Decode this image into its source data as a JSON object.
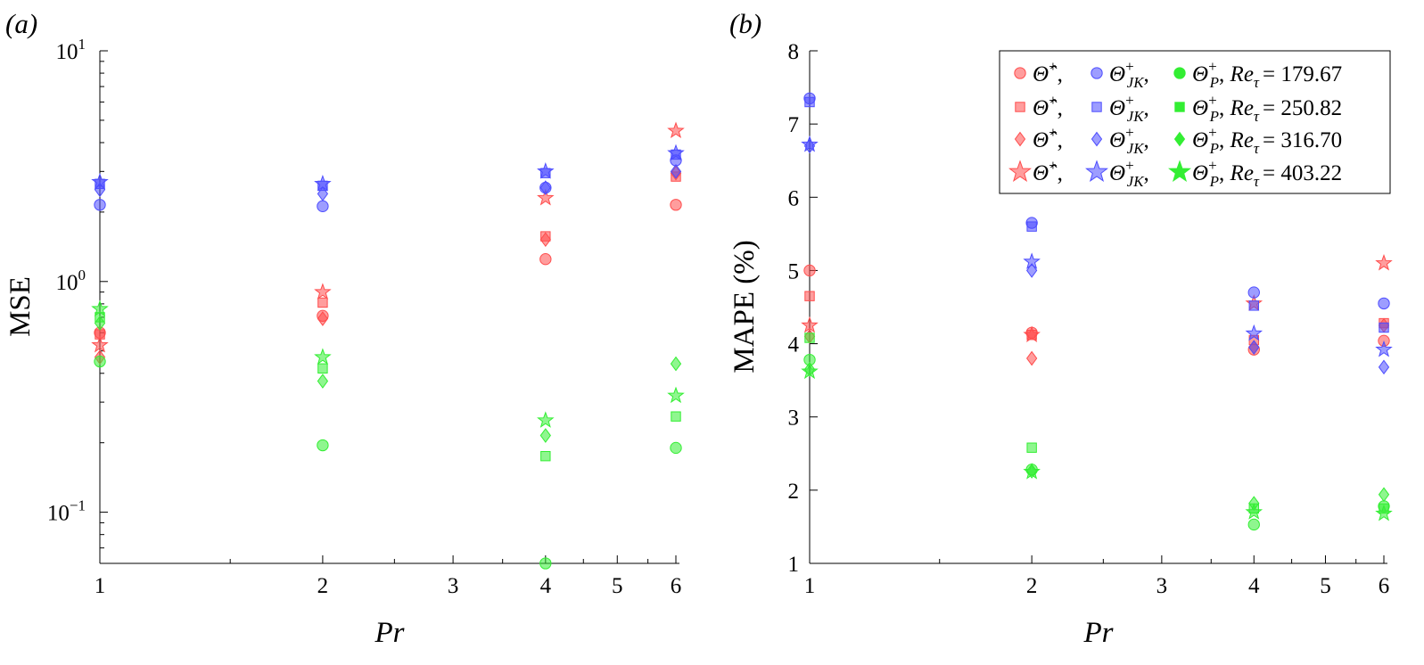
{
  "colors": {
    "red": "#ff4d4d",
    "blue": "#4d4dff",
    "green": "#33ee33"
  },
  "legend": {
    "placement": "top-right of panel (b)",
    "symbol_1": "Θ̂",
    "symbol_2": "Θ",
    "sub_2": "JK",
    "sub_3": "P",
    "sup": "+",
    "re_symbol": "Re",
    "re_sub": "τ",
    "rows": [
      {
        "marker": "circle",
        "value": "= 179.67"
      },
      {
        "marker": "square",
        "value": "= 250.82"
      },
      {
        "marker": "diamond",
        "value": "= 316.70"
      },
      {
        "marker": "star",
        "value": "= 403.22"
      }
    ]
  },
  "chart_data": [
    {
      "panel_label": "(a)",
      "type": "scatter",
      "xlabel": "Pr",
      "ylabel": "MSE",
      "xscale": "log",
      "yscale": "log",
      "xlim": [
        1,
        6
      ],
      "ylim": [
        0.06,
        10
      ],
      "x_ticks": [
        "1",
        "2",
        "3",
        "4",
        "5",
        "6"
      ],
      "y_ticks": [
        {
          "base": "10",
          "exp": "−1"
        },
        {
          "base": "10",
          "exp": "0"
        },
        {
          "base": "10",
          "exp": "1"
        }
      ],
      "x": [
        1,
        2,
        4,
        6
      ],
      "series": [
        {
          "group": "red",
          "marker": "circle",
          "values": [
            0.6,
            0.71,
            1.25,
            2.15
          ]
        },
        {
          "group": "red",
          "marker": "square",
          "values": [
            0.59,
            0.81,
            1.57,
            2.85
          ]
        },
        {
          "group": "red",
          "marker": "diamond",
          "values": [
            0.47,
            0.69,
            1.52,
            2.95
          ]
        },
        {
          "group": "red",
          "marker": "star",
          "values": [
            0.53,
            0.9,
            2.3,
            4.5
          ]
        },
        {
          "group": "blue",
          "marker": "circle",
          "values": [
            2.15,
            2.12,
            2.55,
            3.35
          ]
        },
        {
          "group": "blue",
          "marker": "square",
          "values": [
            2.65,
            2.6,
            2.95,
            3.55
          ]
        },
        {
          "group": "blue",
          "marker": "diamond",
          "values": [
            2.5,
            2.4,
            2.55,
            3.0
          ]
        },
        {
          "group": "blue",
          "marker": "star",
          "values": [
            2.7,
            2.65,
            3.0,
            3.6
          ]
        },
        {
          "group": "green",
          "marker": "circle",
          "values": [
            0.45,
            0.195,
            0.06,
            0.19
          ]
        },
        {
          "group": "green",
          "marker": "square",
          "values": [
            0.7,
            0.42,
            0.175,
            0.26
          ]
        },
        {
          "group": "green",
          "marker": "diamond",
          "values": [
            0.66,
            0.37,
            0.215,
            0.44
          ]
        },
        {
          "group": "green",
          "marker": "star",
          "values": [
            0.76,
            0.47,
            0.25,
            0.32
          ]
        }
      ]
    },
    {
      "panel_label": "(b)",
      "type": "scatter",
      "xlabel": "Pr",
      "ylabel": "MAPE (%)",
      "xscale": "log",
      "yscale": "linear",
      "xlim": [
        1,
        6
      ],
      "ylim": [
        1,
        8
      ],
      "x_ticks": [
        "1",
        "2",
        "3",
        "4",
        "5",
        "6"
      ],
      "y_ticks": [
        "1",
        "2",
        "3",
        "4",
        "5",
        "6",
        "7",
        "8"
      ],
      "x": [
        1,
        2,
        4,
        6
      ],
      "series": [
        {
          "group": "red",
          "marker": "circle",
          "values": [
            5.0,
            4.15,
            3.92,
            4.04
          ]
        },
        {
          "group": "red",
          "marker": "square",
          "values": [
            4.65,
            4.12,
            4.05,
            4.28
          ]
        },
        {
          "group": "red",
          "marker": "diamond",
          "values": [
            4.1,
            3.8,
            3.95,
            4.25
          ]
        },
        {
          "group": "red",
          "marker": "star",
          "values": [
            4.25,
            4.12,
            4.55,
            5.1
          ]
        },
        {
          "group": "blue",
          "marker": "circle",
          "values": [
            7.35,
            5.65,
            4.7,
            4.55
          ]
        },
        {
          "group": "blue",
          "marker": "square",
          "values": [
            7.3,
            5.6,
            4.52,
            4.22
          ]
        },
        {
          "group": "blue",
          "marker": "diamond",
          "values": [
            6.7,
            5.0,
            3.95,
            3.68
          ]
        },
        {
          "group": "blue",
          "marker": "star",
          "values": [
            6.72,
            5.12,
            4.14,
            3.92
          ]
        },
        {
          "group": "green",
          "marker": "circle",
          "values": [
            3.78,
            2.28,
            1.53,
            1.78
          ]
        },
        {
          "group": "green",
          "marker": "square",
          "values": [
            4.08,
            2.58,
            1.75,
            1.75
          ]
        },
        {
          "group": "green",
          "marker": "diamond",
          "values": [
            3.65,
            2.26,
            1.82,
            1.94
          ]
        },
        {
          "group": "green",
          "marker": "star",
          "values": [
            3.62,
            2.25,
            1.7,
            1.68
          ]
        }
      ]
    }
  ]
}
